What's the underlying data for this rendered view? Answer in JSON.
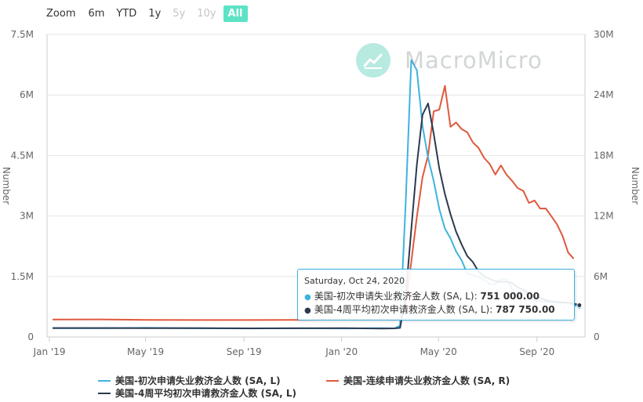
{
  "range_selector": {
    "zoom_label": "Zoom",
    "buttons": [
      {
        "label": "6m",
        "state": "normal"
      },
      {
        "label": "YTD",
        "state": "normal"
      },
      {
        "label": "1y",
        "state": "normal"
      },
      {
        "label": "5y",
        "state": "disabled"
      },
      {
        "label": "10y",
        "state": "disabled"
      },
      {
        "label": "All",
        "state": "active"
      }
    ]
  },
  "watermark": {
    "text": "MacroMicro",
    "icon": "chart-logo-icon"
  },
  "colors": {
    "initial": "#3eb3de",
    "continuing": "#e0583c",
    "avg4w": "#2b3a4e",
    "accent": "#5ce3c6"
  },
  "tooltip": {
    "date": "Saturday, Oct 24, 2020",
    "rows": [
      {
        "label": "美国-初次申请失业救济金人数 (SA, L): ",
        "value": "751 000.00",
        "color": "#3eb3de"
      },
      {
        "label": "美国-4周平均初次申请救济金人数 (SA, L): ",
        "value": "787 750.00",
        "color": "#2b3a4e"
      }
    ]
  },
  "chart_data": {
    "type": "line",
    "x_ticks": [
      "Jan '19",
      "May '19",
      "Sep '19",
      "Jan '20",
      "May '20",
      "Sep '20"
    ],
    "x_tick_dates": [
      "2019-01-01",
      "2019-05-01",
      "2019-09-01",
      "2020-01-01",
      "2020-05-01",
      "2020-09-01"
    ],
    "x_range": [
      "2018-12-29",
      "2020-10-31"
    ],
    "y_left": {
      "label": "Number",
      "min": 0,
      "max": 7500000,
      "ticks": [
        0,
        1500000,
        3000000,
        4500000,
        6000000,
        7500000
      ],
      "tick_labels": [
        "0",
        "1.5M",
        "3M",
        "4.5M",
        "6M",
        "7.5M"
      ]
    },
    "y_right": {
      "label": "Number",
      "min": 0,
      "max": 30000000,
      "ticks": [
        0,
        6000000,
        12000000,
        18000000,
        24000000,
        30000000
      ],
      "tick_labels": [
        "0",
        "6M",
        "12M",
        "18M",
        "24M",
        "30M"
      ]
    },
    "grid": true,
    "legend_position": "bottom",
    "series": [
      {
        "name": "美国-初次申请失业救济金人数 (SA, L)",
        "axis": "left",
        "color": "#3eb3de",
        "points": [
          [
            "2019-01-05",
            220000
          ],
          [
            "2019-03-02",
            217000
          ],
          [
            "2019-05-04",
            225000
          ],
          [
            "2019-07-06",
            215000
          ],
          [
            "2019-09-07",
            212000
          ],
          [
            "2019-11-02",
            215000
          ],
          [
            "2020-01-04",
            212000
          ],
          [
            "2020-02-22",
            217000
          ],
          [
            "2020-03-07",
            211000
          ],
          [
            "2020-03-14",
            282000
          ],
          [
            "2020-03-21",
            3307000
          ],
          [
            "2020-03-28",
            6867000
          ],
          [
            "2020-04-04",
            6615000
          ],
          [
            "2020-04-11",
            5237000
          ],
          [
            "2020-04-18",
            4442000
          ],
          [
            "2020-04-25",
            3867000
          ],
          [
            "2020-05-02",
            3176000
          ],
          [
            "2020-05-09",
            2687000
          ],
          [
            "2020-05-16",
            2446000
          ],
          [
            "2020-05-23",
            2123000
          ],
          [
            "2020-05-30",
            1897000
          ],
          [
            "2020-06-06",
            1566000
          ],
          [
            "2020-06-13",
            1540000
          ],
          [
            "2020-06-20",
            1482000
          ],
          [
            "2020-06-27",
            1427000
          ],
          [
            "2020-07-04",
            1310000
          ],
          [
            "2020-07-11",
            1307000
          ],
          [
            "2020-07-18",
            1422000
          ],
          [
            "2020-07-25",
            1434000
          ],
          [
            "2020-08-01",
            1186000
          ],
          [
            "2020-08-08",
            963000
          ],
          [
            "2020-08-15",
            1104000
          ],
          [
            "2020-08-22",
            1011000
          ],
          [
            "2020-08-29",
            881000
          ],
          [
            "2020-09-05",
            893000
          ],
          [
            "2020-09-12",
            866000
          ],
          [
            "2020-09-19",
            873000
          ],
          [
            "2020-09-26",
            849000
          ],
          [
            "2020-10-03",
            845000
          ],
          [
            "2020-10-10",
            842000
          ],
          [
            "2020-10-17",
            787000
          ],
          [
            "2020-10-24",
            751000
          ]
        ]
      },
      {
        "name": "美国-4周平均初次申请救济金人数 (SA, L)",
        "axis": "left",
        "color": "#2b3a4e",
        "points": [
          [
            "2019-01-05",
            222000
          ],
          [
            "2019-03-02",
            222000
          ],
          [
            "2019-05-04",
            220000
          ],
          [
            "2019-07-06",
            218000
          ],
          [
            "2019-09-07",
            214000
          ],
          [
            "2019-11-02",
            216000
          ],
          [
            "2020-01-04",
            218000
          ],
          [
            "2020-02-22",
            210000
          ],
          [
            "2020-03-07",
            213000
          ],
          [
            "2020-03-14",
            226000
          ],
          [
            "2020-03-21",
            998000
          ],
          [
            "2020-03-28",
            2667000
          ],
          [
            "2020-04-04",
            4268000
          ],
          [
            "2020-04-11",
            5507000
          ],
          [
            "2020-04-18",
            5790000
          ],
          [
            "2020-04-25",
            5040000
          ],
          [
            "2020-05-02",
            4180000
          ],
          [
            "2020-05-09",
            3543000
          ],
          [
            "2020-05-16",
            3044000
          ],
          [
            "2020-05-23",
            2613000
          ],
          [
            "2020-05-30",
            2288000
          ],
          [
            "2020-06-06",
            2008000
          ],
          [
            "2020-06-13",
            1856000
          ],
          [
            "2020-06-20",
            1621000
          ],
          [
            "2020-06-27",
            1504000
          ],
          [
            "2020-07-04",
            1440000
          ],
          [
            "2020-07-11",
            1380000
          ],
          [
            "2020-07-18",
            1368000
          ],
          [
            "2020-07-25",
            1368000
          ],
          [
            "2020-08-01",
            1340000
          ],
          [
            "2020-08-08",
            1228000
          ],
          [
            "2020-08-15",
            1172000
          ],
          [
            "2020-08-22",
            1066000
          ],
          [
            "2020-08-29",
            990000
          ],
          [
            "2020-09-05",
            972000
          ],
          [
            "2020-09-12",
            913000
          ],
          [
            "2020-09-19",
            880000
          ],
          [
            "2020-09-26",
            870000
          ],
          [
            "2020-10-03",
            857000
          ],
          [
            "2020-10-10",
            852000
          ],
          [
            "2020-10-17",
            830000
          ],
          [
            "2020-10-24",
            787750
          ]
        ]
      },
      {
        "name": "美国-连续申请失业救济金人数 (SA, R)",
        "axis": "right",
        "color": "#e0583c",
        "points": [
          [
            "2019-01-05",
            1730000
          ],
          [
            "2019-03-02",
            1740000
          ],
          [
            "2019-05-04",
            1690000
          ],
          [
            "2019-07-06",
            1680000
          ],
          [
            "2019-09-07",
            1680000
          ],
          [
            "2019-11-02",
            1690000
          ],
          [
            "2020-01-04",
            1730000
          ],
          [
            "2020-02-22",
            1720000
          ],
          [
            "2020-03-07",
            1700000
          ],
          [
            "2020-03-14",
            1780000
          ],
          [
            "2020-03-21",
            3060000
          ],
          [
            "2020-03-28",
            7450000
          ],
          [
            "2020-04-04",
            11910000
          ],
          [
            "2020-04-11",
            15820000
          ],
          [
            "2020-04-18",
            18010000
          ],
          [
            "2020-04-25",
            22380000
          ],
          [
            "2020-05-02",
            22550000
          ],
          [
            "2020-05-09",
            24910000
          ],
          [
            "2020-05-16",
            20840000
          ],
          [
            "2020-05-23",
            21270000
          ],
          [
            "2020-05-30",
            20610000
          ],
          [
            "2020-06-06",
            20290000
          ],
          [
            "2020-06-13",
            19290000
          ],
          [
            "2020-06-20",
            18760000
          ],
          [
            "2020-06-27",
            17760000
          ],
          [
            "2020-07-04",
            17150000
          ],
          [
            "2020-07-11",
            16110000
          ],
          [
            "2020-07-18",
            17020000
          ],
          [
            "2020-07-25",
            16090000
          ],
          [
            "2020-08-01",
            15480000
          ],
          [
            "2020-08-08",
            14760000
          ],
          [
            "2020-08-15",
            14490000
          ],
          [
            "2020-08-22",
            13290000
          ],
          [
            "2020-08-29",
            13540000
          ],
          [
            "2020-09-05",
            12740000
          ],
          [
            "2020-09-12",
            12750000
          ],
          [
            "2020-09-19",
            11980000
          ],
          [
            "2020-09-26",
            11180000
          ],
          [
            "2020-10-03",
            10020000
          ],
          [
            "2020-10-10",
            8370000
          ],
          [
            "2020-10-17",
            7760000
          ]
        ]
      }
    ]
  }
}
